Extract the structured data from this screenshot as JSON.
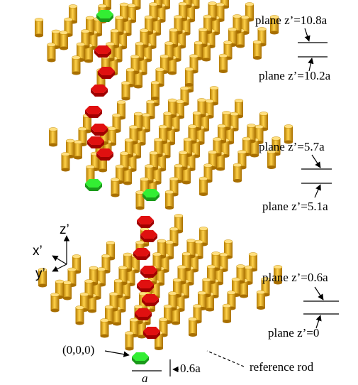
{
  "planes": {
    "top_upper": "plane z’=10.8a",
    "top_lower": "plane z’=10.2a",
    "mid_upper": "plane z’=5.7a",
    "mid_lower": "plane z’=5.1a",
    "bottom_upper": "plane z’=0.6a",
    "bottom_lower": "plane z’=0"
  },
  "axes": {
    "z": "z’",
    "x": "x’",
    "y": "y’"
  },
  "annotations": {
    "origin": "(0,0,0)",
    "spacing": "a",
    "height": "0.6a",
    "reference": "reference rod"
  }
}
